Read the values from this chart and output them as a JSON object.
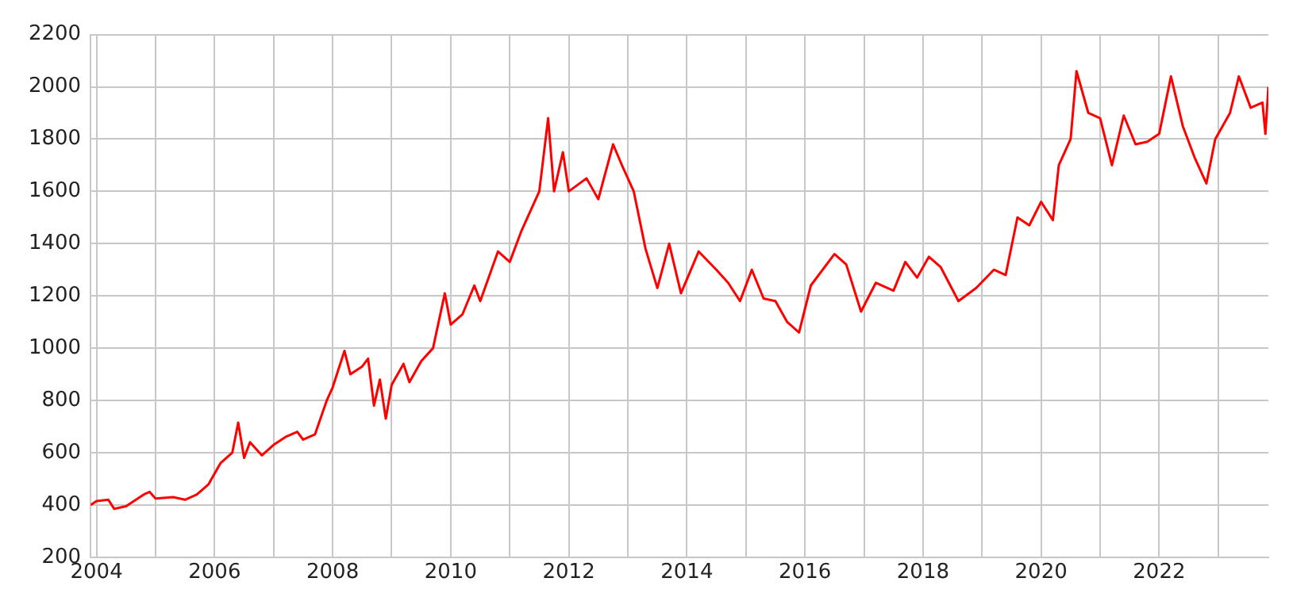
{
  "chart_data": {
    "type": "line",
    "x": [
      2003.9,
      2004.0,
      2004.2,
      2004.3,
      2004.5,
      2004.8,
      2004.9,
      2005.0,
      2005.3,
      2005.5,
      2005.7,
      2005.9,
      2006.0,
      2006.1,
      2006.3,
      2006.4,
      2006.5,
      2006.6,
      2006.8,
      2007.0,
      2007.2,
      2007.4,
      2007.5,
      2007.7,
      2007.9,
      2008.0,
      2008.2,
      2008.3,
      2008.5,
      2008.6,
      2008.7,
      2008.8,
      2008.9,
      2009.0,
      2009.2,
      2009.3,
      2009.5,
      2009.7,
      2009.9,
      2010.0,
      2010.2,
      2010.4,
      2010.5,
      2010.8,
      2011.0,
      2011.2,
      2011.5,
      2011.65,
      2011.75,
      2011.9,
      2012.0,
      2012.3,
      2012.5,
      2012.75,
      2012.9,
      2013.1,
      2013.3,
      2013.5,
      2013.7,
      2013.9,
      2014.2,
      2014.5,
      2014.7,
      2014.9,
      2015.1,
      2015.3,
      2015.5,
      2015.7,
      2015.9,
      2016.1,
      2016.5,
      2016.7,
      2016.95,
      2017.2,
      2017.5,
      2017.7,
      2017.9,
      2018.1,
      2018.3,
      2018.6,
      2018.9,
      2019.2,
      2019.4,
      2019.6,
      2019.8,
      2020.0,
      2020.2,
      2020.3,
      2020.5,
      2020.6,
      2020.8,
      2021.0,
      2021.2,
      2021.4,
      2021.6,
      2021.8,
      2022.0,
      2022.2,
      2022.4,
      2022.6,
      2022.8,
      2022.95,
      2023.2,
      2023.35,
      2023.55,
      2023.75,
      2023.8,
      2023.85
    ],
    "series": [
      {
        "color": "#ff0000",
        "values": [
          400,
          415,
          420,
          385,
          395,
          440,
          450,
          425,
          430,
          420,
          440,
          480,
          520,
          560,
          600,
          715,
          580,
          640,
          590,
          630,
          660,
          680,
          650,
          670,
          800,
          850,
          990,
          900,
          930,
          960,
          780,
          880,
          730,
          860,
          940,
          870,
          950,
          1000,
          1210,
          1090,
          1130,
          1240,
          1180,
          1370,
          1330,
          1450,
          1600,
          1880,
          1600,
          1750,
          1600,
          1650,
          1570,
          1780,
          1700,
          1600,
          1380,
          1230,
          1400,
          1210,
          1370,
          1300,
          1250,
          1180,
          1300,
          1190,
          1180,
          1100,
          1060,
          1240,
          1360,
          1320,
          1140,
          1250,
          1220,
          1330,
          1270,
          1350,
          1310,
          1180,
          1230,
          1300,
          1280,
          1500,
          1470,
          1560,
          1490,
          1700,
          1800,
          2060,
          1900,
          1880,
          1700,
          1890,
          1780,
          1790,
          1820,
          2040,
          1850,
          1730,
          1630,
          1800,
          1900,
          2040,
          1920,
          1940,
          1820,
          2000
        ]
      }
    ],
    "xlim": [
      2003.9,
      2023.85
    ],
    "xticks": [
      2004,
      {
        "value": 2005,
        "label": null
      },
      2006,
      {
        "value": 2007,
        "label": null
      },
      2008,
      {
        "value": 2009,
        "label": null
      },
      2010,
      {
        "value": 2011,
        "label": null
      },
      2012,
      {
        "value": 2013,
        "label": null
      },
      2014,
      {
        "value": 2015,
        "label": null
      },
      2016,
      {
        "value": 2017,
        "label": null
      },
      2018,
      {
        "value": 2019,
        "label": null
      },
      2020,
      {
        "value": 2021,
        "label": null
      },
      2022,
      {
        "value": 2023,
        "label": null
      }
    ],
    "ylim": [
      200,
      2200
    ],
    "yticks": [
      200,
      400,
      600,
      800,
      1000,
      1200,
      1400,
      1600,
      1800,
      2000,
      2200
    ],
    "grid": true,
    "legend": false
  }
}
